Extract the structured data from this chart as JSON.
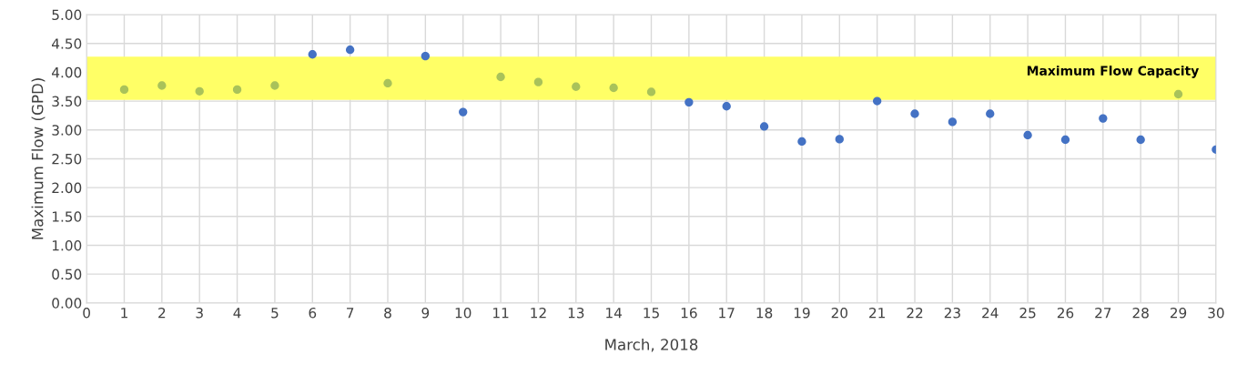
{
  "chart_data": {
    "type": "scatter",
    "xlabel": "March, 2018",
    "ylabel": "Maximum Flow (GPD)",
    "x": [
      1,
      2,
      3,
      4,
      5,
      6,
      7,
      8,
      9,
      10,
      11,
      12,
      13,
      14,
      15,
      16,
      17,
      18,
      19,
      20,
      21,
      22,
      23,
      24,
      25,
      26,
      27,
      28,
      29,
      30
    ],
    "series": [
      {
        "values": [
          3.7,
          3.77,
          3.67,
          3.7,
          3.77,
          4.31,
          4.39,
          3.81,
          4.28,
          3.31,
          3.92,
          3.83,
          3.75,
          3.73,
          3.66,
          3.48,
          3.41,
          3.06,
          2.8,
          2.84,
          3.5,
          3.28,
          3.14,
          3.28,
          2.91,
          2.83,
          3.2,
          2.83,
          3.62,
          2.66
        ],
        "colors": [
          "#a9c25a",
          "#a9c25a",
          "#a9c25a",
          "#a9c25a",
          "#a9c25a",
          "#4472c4",
          "#4472c4",
          "#a9c25a",
          "#4472c4",
          "#4472c4",
          "#a9c25a",
          "#a9c25a",
          "#a9c25a",
          "#a9c25a",
          "#a9c25a",
          "#4472c4",
          "#4472c4",
          "#4472c4",
          "#4472c4",
          "#4472c4",
          "#4472c4",
          "#4472c4",
          "#4472c4",
          "#4472c4",
          "#4472c4",
          "#4472c4",
          "#4472c4",
          "#4472c4",
          "#a9c25a",
          "#4472c4"
        ]
      }
    ],
    "bands": [
      {
        "axis": "y",
        "from": 3.52,
        "to": 4.27,
        "label": "Maximum Flow Capacity",
        "color": "#ffff66"
      }
    ],
    "xlim": [
      0,
      30
    ],
    "xticks": [
      0,
      1,
      2,
      3,
      4,
      5,
      6,
      7,
      8,
      9,
      10,
      11,
      12,
      13,
      14,
      15,
      16,
      17,
      18,
      19,
      20,
      21,
      22,
      23,
      24,
      25,
      26,
      27,
      28,
      29,
      30
    ],
    "ylim": [
      0,
      5
    ],
    "yticks": [
      {
        "value": 0,
        "label": "0.00"
      },
      {
        "value": 0.5,
        "label": "0.50"
      },
      {
        "value": 1,
        "label": "1.00"
      },
      {
        "value": 1.5,
        "label": "1.50"
      },
      {
        "value": 2,
        "label": "2.00"
      },
      {
        "value": 2.5,
        "label": "2.50"
      },
      {
        "value": 3,
        "label": "3.00"
      },
      {
        "value": 3.5,
        "label": "3.50"
      },
      {
        "value": 4,
        "label": "4.00"
      },
      {
        "value": 4.5,
        "label": "4.50"
      },
      {
        "value": 5,
        "label": "5.00"
      }
    ],
    "grid": true,
    "marker": "circle",
    "legend": false
  }
}
